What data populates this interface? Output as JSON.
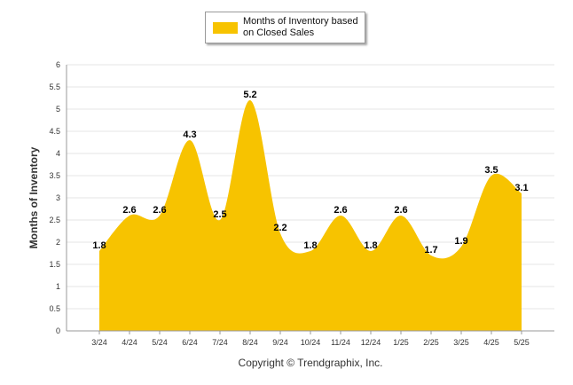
{
  "legend": {
    "label": "Months of Inventory based on Closed Sales"
  },
  "footer": {
    "copyright": "Copyright © Trendgraphix, Inc."
  },
  "colors": {
    "area": "#F7C300",
    "grid": "#e6e6e6",
    "axis": "#999999"
  },
  "chart_data": {
    "type": "area",
    "title": "",
    "xlabel": "",
    "ylabel": "Months of Inventory",
    "categories": [
      "3/24",
      "4/24",
      "5/24",
      "6/24",
      "7/24",
      "8/24",
      "9/24",
      "10/24",
      "11/24",
      "12/24",
      "1/25",
      "2/25",
      "3/25",
      "4/25",
      "5/25"
    ],
    "series": [
      {
        "name": "Months of Inventory based on Closed Sales",
        "values": [
          1.8,
          2.6,
          2.6,
          4.3,
          2.5,
          5.2,
          2.2,
          1.8,
          2.6,
          1.8,
          2.6,
          1.7,
          1.9,
          3.5,
          3.1
        ]
      }
    ],
    "ylim": [
      0,
      6
    ],
    "yticks": [
      "0",
      "0.5",
      "1",
      "1.5",
      "2",
      "2.5",
      "3",
      "3.5",
      "4",
      "4.5",
      "5",
      "5.5",
      "6"
    ],
    "grid": true,
    "legend_position": "top-center",
    "smooth": true
  }
}
